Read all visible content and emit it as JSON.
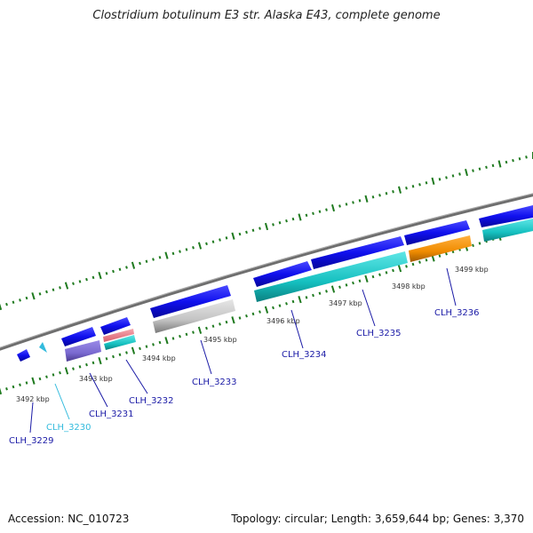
{
  "title": "Clostridium botulinum E3 str. Alaska E43, complete genome",
  "footer": {
    "accession": "Accession: NC_010723",
    "info": "Topology: circular; Length: 3,659,644 bp; Genes: 3,370"
  },
  "ticks": [
    "3492 kbp",
    "3493 kbp",
    "3494 kbp",
    "3495 kbp",
    "3496 kbp",
    "3497 kbp",
    "3498 kbp",
    "3499 kbp"
  ],
  "genes": [
    {
      "id": "CLH_3229",
      "color": "#1a1aa6"
    },
    {
      "id": "CLH_3230",
      "color": "#33bbdd"
    },
    {
      "id": "CLH_3231",
      "color": "#1a1aa6"
    },
    {
      "id": "CLH_3232",
      "color": "#1a1aa6"
    },
    {
      "id": "CLH_3233",
      "color": "#1a1aa6"
    },
    {
      "id": "CLH_3234",
      "color": "#1a1aa6"
    },
    {
      "id": "CLH_3235",
      "color": "#1a1aa6"
    },
    {
      "id": "CLH_3236",
      "color": "#1a1aa6"
    }
  ],
  "colors": {
    "cds": "#1515e0",
    "backbone": "#888888",
    "tick": "#1f7a1f",
    "cyan": "#1fc4c4",
    "orange": "#f08c00",
    "gray": "#c8c8c8",
    "purple": "#7a6ad0",
    "pink": "#e87a88",
    "lightblue": "#33bbdd"
  }
}
